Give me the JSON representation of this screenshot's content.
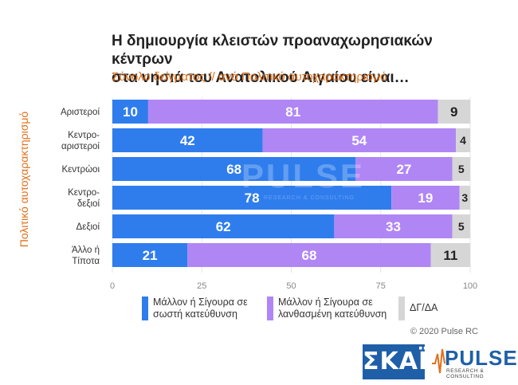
{
  "title_line1": "Η δημιουργία κλειστών προαναχωρησιακών κέντρων",
  "title_line2": "στα νησιά του Ανατολικού Αιγαίου είναι…",
  "subtitle": "Σύνολο δείγματος // ανά Πολιτικό αυτοχαρακτηρισμό",
  "ylabel": "Πολιτικό αυτοχαρακτηρισμό",
  "copyright": "© 2020 Pulse RC",
  "logos": {
    "skai": "ΣΚΑΪ",
    "pulse": "PULSE",
    "pulse_sub": "RESEARCH & CONSULTING"
  },
  "chart_data": {
    "type": "bar",
    "orientation": "horizontal",
    "stacked": true,
    "categories": [
      [
        "Αριστεροί"
      ],
      [
        "Κεντρο-",
        "αριστεροί"
      ],
      [
        "Κεντρώοι"
      ],
      [
        "Κεντρο-",
        "δεξιοί"
      ],
      [
        "Δεξιοί"
      ],
      [
        "Άλλο ή",
        "Τίποτα"
      ]
    ],
    "series": [
      {
        "name": "Μάλλον ή Σίγουρα σε σωστή κατεύθυνση",
        "legend_lines": [
          "Μάλλον ή Σίγουρα σε",
          "σωστή κατεύθυνση"
        ],
        "color": "#2f7ded",
        "label_color": "#ffffff",
        "values": [
          10,
          42,
          68,
          78,
          62,
          21
        ]
      },
      {
        "name": "Μάλλον ή Σίγουρα σε λανθασμένη κατεύθυνση",
        "legend_lines": [
          "Μάλλον ή Σίγουρα σε",
          "λανθασμένη κατεύθυνση"
        ],
        "color": "#b086f5",
        "label_color": "#ffffff",
        "values": [
          81,
          54,
          27,
          19,
          33,
          68
        ]
      },
      {
        "name": "ΔΓ/ΔΑ",
        "legend_lines": [
          "ΔΓ/ΔΑ"
        ],
        "color": "#d6d6d6",
        "label_color": "#222222",
        "values": [
          9,
          4,
          5,
          3,
          5,
          11
        ]
      }
    ],
    "xlim": [
      0,
      100
    ],
    "xticks": [
      0,
      25,
      50,
      75,
      100
    ],
    "grid": true,
    "legend_position": "bottom"
  }
}
